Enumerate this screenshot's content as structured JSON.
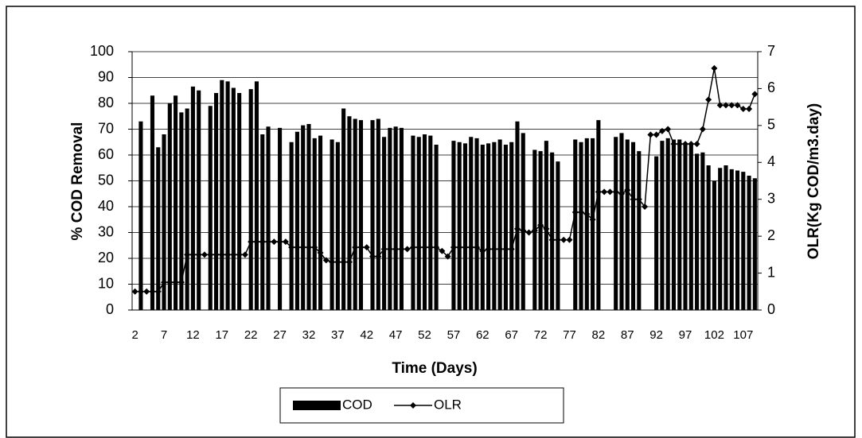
{
  "chart_data": {
    "type": "bar-line",
    "xlabel": "Time (Days)",
    "ylabel": "% COD Removal",
    "y2label": "OLR(Kg COD/m3.day)",
    "categories": [
      2,
      null,
      null,
      null,
      null,
      7,
      null,
      null,
      null,
      null,
      12,
      null,
      null,
      null,
      null,
      17,
      null,
      null,
      null,
      null,
      22,
      null,
      null,
      null,
      null,
      27,
      null,
      null,
      null,
      null,
      32,
      null,
      null,
      null,
      null,
      37,
      null,
      null,
      null,
      null,
      42,
      null,
      null,
      null,
      null,
      47,
      null,
      null,
      null,
      null,
      52,
      null,
      null,
      null,
      null,
      57,
      null,
      null,
      null,
      null,
      62,
      null,
      null,
      null,
      null,
      67,
      null,
      null,
      null,
      null,
      72,
      null,
      null,
      null,
      null,
      77,
      null,
      null,
      null,
      null,
      82,
      null,
      null,
      null,
      null,
      87,
      null,
      null,
      null,
      null,
      92,
      null,
      null,
      null,
      null,
      97,
      null,
      null,
      null,
      null,
      102,
      null,
      null,
      null,
      null,
      107,
      null,
      null
    ],
    "series": [
      {
        "name": "COD",
        "color": "#000000",
        "values": [
          null,
          73,
          null,
          83,
          63,
          68,
          80,
          83,
          76.5,
          78,
          86.5,
          85,
          null,
          79,
          84,
          89,
          88.5,
          86,
          84,
          null,
          85.5,
          88.5,
          68,
          71,
          null,
          70.5,
          null,
          65,
          69,
          71.5,
          72,
          66.5,
          67.5,
          null,
          66,
          65,
          78,
          75,
          74,
          73.5,
          null,
          73.5,
          74,
          67,
          70.5,
          71,
          70.5,
          null,
          67.5,
          67,
          68,
          67.5,
          64,
          null,
          null,
          65.5,
          65,
          64.5,
          67,
          66.5,
          64,
          64.5,
          65,
          66,
          64,
          65,
          73,
          68.5,
          null,
          62,
          61.5,
          65.5,
          61,
          57.5,
          null,
          null,
          66,
          65,
          66.5,
          66.5,
          73.5,
          null,
          null,
          67,
          68.5,
          66,
          65,
          61.5,
          null,
          null,
          59.5,
          65.5,
          66.5,
          66,
          66,
          64.5,
          64,
          60.5,
          61,
          56,
          50,
          55,
          56,
          54.5,
          54,
          53.5,
          52,
          51
        ]
      },
      {
        "name": "OLR",
        "color": "#000000",
        "axis": "y2",
        "values": [
          0.5,
          0.5,
          0.5,
          0.5,
          0.5,
          0.75,
          0.75,
          0.75,
          0.75,
          1.5,
          1.5,
          1.5,
          1.5,
          1.5,
          1.5,
          1.5,
          1.5,
          1.5,
          1.5,
          1.5,
          1.85,
          1.85,
          1.85,
          1.85,
          1.85,
          1.85,
          1.85,
          1.7,
          1.7,
          1.7,
          1.7,
          1.7,
          1.55,
          1.35,
          1.3,
          1.3,
          1.3,
          1.3,
          1.7,
          1.7,
          1.7,
          1.45,
          1.45,
          1.65,
          1.65,
          1.65,
          1.65,
          1.65,
          1.7,
          1.7,
          1.7,
          1.7,
          1.7,
          1.6,
          1.45,
          1.7,
          1.7,
          1.7,
          1.7,
          1.7,
          1.6,
          1.65,
          1.65,
          1.65,
          1.65,
          1.65,
          2.2,
          2.15,
          2.1,
          2.15,
          2.3,
          2.2,
          1.9,
          1.9,
          1.9,
          1.9,
          2.65,
          2.65,
          2.6,
          2.45,
          3.2,
          3.2,
          3.2,
          3.2,
          3.15,
          3.25,
          3.0,
          3.0,
          2.8,
          4.75,
          4.75,
          4.85,
          4.9,
          4.5,
          4.5,
          4.5,
          4.5,
          4.5,
          4.9,
          5.7,
          6.55,
          5.55,
          5.55,
          5.55,
          5.55,
          5.45,
          5.45,
          5.85
        ]
      }
    ],
    "ylim": [
      0,
      100
    ],
    "yticks": [
      0,
      10,
      20,
      30,
      40,
      50,
      60,
      70,
      80,
      90,
      100
    ],
    "y2lim": [
      0,
      7
    ],
    "y2ticks": [
      0,
      1,
      2,
      3,
      4,
      5,
      6,
      7
    ],
    "grid": true,
    "legend": "bottom"
  }
}
